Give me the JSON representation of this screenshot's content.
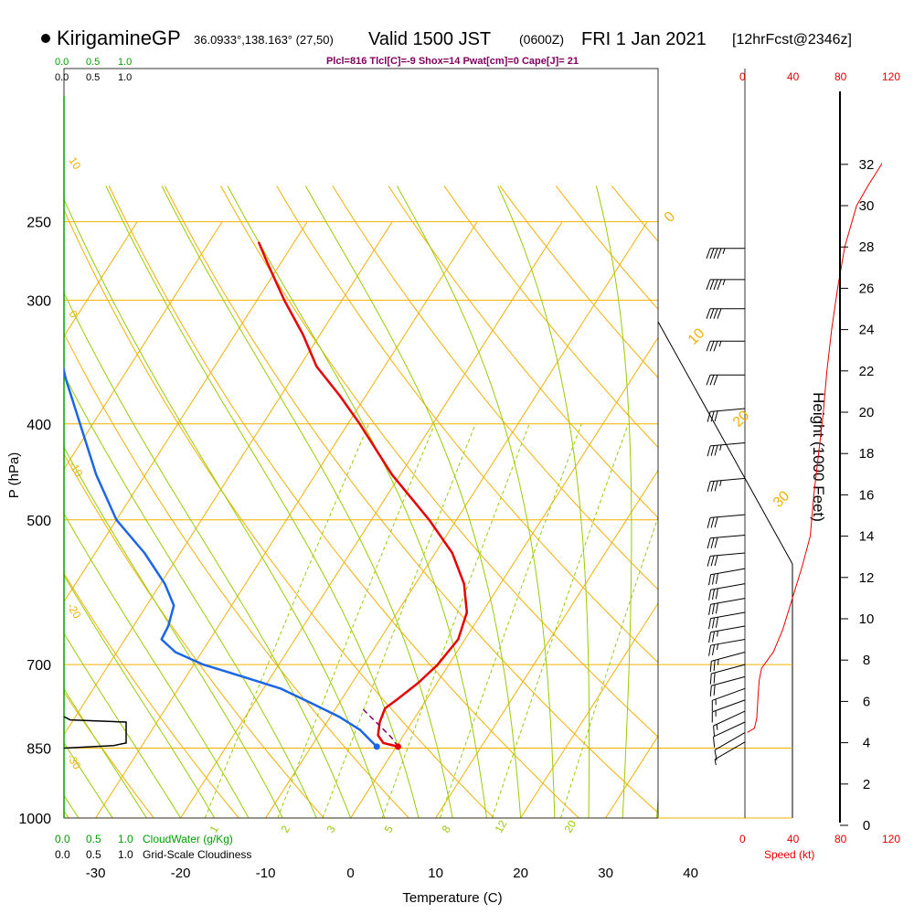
{
  "header": {
    "station": "KirigamineGP",
    "coords": "36.0933°,138.163° (27,50)",
    "valid": "Valid 1500 JST",
    "zulu": "(0600Z)",
    "date": "FRI 1 Jan 2021",
    "forecast": "[12hrFcst@2346z]"
  },
  "indices": "Plcl=816 Tlcl[C]=-9 Shox=14 Pwat[cm]=0 Cape[J]= 21",
  "colors": {
    "isobar": "#f2b000",
    "isotherm": "#f2b000",
    "dry_adiabat": "#f2b000",
    "moist_adiabat": "#99cc00",
    "mixing_ratio": "#99cc00",
    "temperature": "#e60000",
    "dewpoint": "#1a66e6",
    "parcel": "#800060",
    "cloud_water": "#00a000",
    "wind_speed": "#e60000",
    "text": "#000000"
  },
  "chart_data": {
    "type": "line",
    "chart_kind": "skew-T log-P sounding",
    "xlabel": "Temperature (C)",
    "ylabel": "P (hPa)",
    "right_axis_label": "Height (1000 Feet)",
    "temperature_ticks": [
      -30,
      -20,
      -10,
      0,
      10,
      20,
      30,
      40
    ],
    "pressure_ticks": [
      250,
      300,
      400,
      500,
      700,
      850,
      1000
    ],
    "height_ticks": [
      0,
      2,
      4,
      6,
      8,
      10,
      12,
      14,
      16,
      18,
      20,
      22,
      24,
      26,
      28,
      30,
      32
    ],
    "isotherm_range": [
      -110,
      50
    ],
    "dry_adiabat_labels": [
      "0",
      "10",
      "20",
      "30"
    ],
    "isotherm_labels": [
      "10",
      "0",
      "-10",
      "-20",
      "-30"
    ],
    "mixing_ratio_labels": [
      "1",
      "2",
      "3",
      "5",
      "8",
      "12",
      "20"
    ],
    "temperature_profile": [
      {
        "p": 847,
        "t": 0.2
      },
      {
        "p": 840,
        "t": -1.8
      },
      {
        "p": 825,
        "t": -3.0
      },
      {
        "p": 800,
        "t": -3.8
      },
      {
        "p": 775,
        "t": -4.2
      },
      {
        "p": 760,
        "t": -3.5
      },
      {
        "p": 730,
        "t": -2.2
      },
      {
        "p": 700,
        "t": -1.3
      },
      {
        "p": 660,
        "t": -0.8
      },
      {
        "p": 620,
        "t": -1.8
      },
      {
        "p": 580,
        "t": -4.3
      },
      {
        "p": 540,
        "t": -8.0
      },
      {
        "p": 500,
        "t": -13.2
      },
      {
        "p": 450,
        "t": -21.0
      },
      {
        "p": 400,
        "t": -28.6
      },
      {
        "p": 375,
        "t": -33.0
      },
      {
        "p": 350,
        "t": -38.0
      },
      {
        "p": 325,
        "t": -42.0
      },
      {
        "p": 300,
        "t": -46.8
      },
      {
        "p": 275,
        "t": -51.6
      },
      {
        "p": 262,
        "t": -54.2
      }
    ],
    "dewpoint_profile": [
      {
        "p": 847,
        "t": -2.3
      },
      {
        "p": 835,
        "t": -3.5
      },
      {
        "p": 815,
        "t": -5.5
      },
      {
        "p": 790,
        "t": -9.0
      },
      {
        "p": 765,
        "t": -13.4
      },
      {
        "p": 740,
        "t": -18.0
      },
      {
        "p": 720,
        "t": -23.3
      },
      {
        "p": 700,
        "t": -28.9
      },
      {
        "p": 680,
        "t": -33.1
      },
      {
        "p": 660,
        "t": -35.7
      },
      {
        "p": 640,
        "t": -35.9
      },
      {
        "p": 610,
        "t": -36.8
      },
      {
        "p": 580,
        "t": -39.5
      },
      {
        "p": 540,
        "t": -44.2
      },
      {
        "p": 500,
        "t": -50.0
      },
      {
        "p": 450,
        "t": -55.8
      },
      {
        "p": 400,
        "t": -61.5
      },
      {
        "p": 360,
        "t": -66.6
      },
      {
        "p": 325,
        "t": -71.1
      },
      {
        "p": 300,
        "t": -76.2
      },
      {
        "p": 285,
        "t": -78.9
      },
      {
        "p": 275,
        "t": -79.5
      },
      {
        "p": 262,
        "t": -80.7
      }
    ],
    "parcel_profile": [
      {
        "p": 847,
        "t": 0.2
      },
      {
        "p": 830,
        "t": -1.2
      },
      {
        "p": 810,
        "t": -3.2
      },
      {
        "p": 790,
        "t": -5.3
      },
      {
        "p": 775,
        "t": -6.9
      }
    ],
    "surface_markers": [
      {
        "p": 847,
        "t": 0.2,
        "kind": "temperature"
      },
      {
        "p": 847,
        "t": -2.3,
        "kind": "dewpoint"
      }
    ],
    "wind_speed_profile": [
      {
        "h": 4.5,
        "v": 2
      },
      {
        "h": 4.7,
        "v": 8
      },
      {
        "h": 5.2,
        "v": 10
      },
      {
        "h": 6.2,
        "v": 11
      },
      {
        "h": 7.0,
        "v": 12
      },
      {
        "h": 7.6,
        "v": 14
      },
      {
        "h": 8.4,
        "v": 24
      },
      {
        "h": 9.5,
        "v": 32
      },
      {
        "h": 11.0,
        "v": 40
      },
      {
        "h": 12.5,
        "v": 48
      },
      {
        "h": 14.0,
        "v": 55
      },
      {
        "h": 16.0,
        "v": 58
      },
      {
        "h": 18.0,
        "v": 62
      },
      {
        "h": 20.0,
        "v": 66
      },
      {
        "h": 22.0,
        "v": 69
      },
      {
        "h": 24.0,
        "v": 73
      },
      {
        "h": 26.0,
        "v": 78
      },
      {
        "h": 28.0,
        "v": 84
      },
      {
        "h": 30.0,
        "v": 94
      },
      {
        "h": 31.0,
        "v": 104
      },
      {
        "h": 32.0,
        "v": 115
      },
      {
        "h": 33.0,
        "v": 124
      }
    ],
    "wind_speed_ticks": [
      0,
      40,
      80,
      120
    ],
    "wind_speed_label": "Speed (kt)",
    "cloud_water_label": "CloudWater (g/Kg)",
    "cloud_water_ticks": [
      "0.0",
      "0.5",
      "1.0"
    ],
    "cloudiness_label": "Grid-Scale Cloudiness",
    "cloudiness_ticks": [
      "0.0",
      "0.5",
      "1.0"
    ],
    "cloudiness_profile": [
      {
        "p": 850,
        "c": 0.0
      },
      {
        "p": 845,
        "c": 0.8
      },
      {
        "p": 840,
        "c": 1.0
      },
      {
        "p": 800,
        "c": 1.0
      },
      {
        "p": 796,
        "c": 0.1
      },
      {
        "p": 790,
        "c": 0.0
      }
    ],
    "wind_barbs": [
      {
        "p": 266,
        "speed": 45,
        "dir": 270
      },
      {
        "p": 286,
        "speed": 45,
        "dir": 270
      },
      {
        "p": 306,
        "speed": 40,
        "dir": 270
      },
      {
        "p": 330,
        "speed": 35,
        "dir": 270
      },
      {
        "p": 357,
        "speed": 30,
        "dir": 270
      },
      {
        "p": 386,
        "speed": 30,
        "dir": 265
      },
      {
        "p": 418,
        "speed": 35,
        "dir": 265
      },
      {
        "p": 454,
        "speed": 35,
        "dir": 265
      },
      {
        "p": 494,
        "speed": 30,
        "dir": 265
      },
      {
        "p": 518,
        "speed": 30,
        "dir": 265
      },
      {
        "p": 540,
        "speed": 30,
        "dir": 265
      },
      {
        "p": 560,
        "speed": 30,
        "dir": 260
      },
      {
        "p": 580,
        "speed": 30,
        "dir": 260
      },
      {
        "p": 600,
        "speed": 30,
        "dir": 260
      },
      {
        "p": 620,
        "speed": 30,
        "dir": 260
      },
      {
        "p": 640,
        "speed": 25,
        "dir": 260
      },
      {
        "p": 660,
        "speed": 25,
        "dir": 260
      },
      {
        "p": 680,
        "speed": 25,
        "dir": 255
      },
      {
        "p": 700,
        "speed": 20,
        "dir": 255
      },
      {
        "p": 720,
        "speed": 20,
        "dir": 255
      },
      {
        "p": 740,
        "speed": 15,
        "dir": 250
      },
      {
        "p": 760,
        "speed": 15,
        "dir": 250
      },
      {
        "p": 780,
        "speed": 15,
        "dir": 245
      },
      {
        "p": 800,
        "speed": 10,
        "dir": 245
      },
      {
        "p": 820,
        "speed": 10,
        "dir": 240
      },
      {
        "p": 838,
        "speed": 5,
        "dir": 240
      }
    ]
  }
}
